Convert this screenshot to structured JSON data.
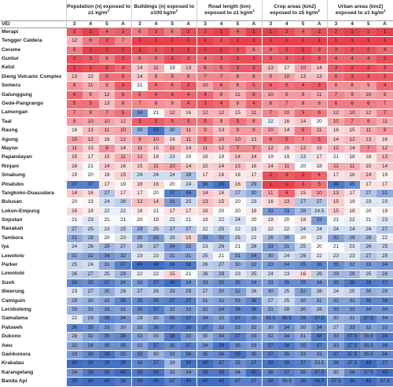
{
  "table": {
    "first_header": "VEI",
    "groups": [
      {
        "label": "Population (n) exposed to ≥1 kg/m",
        "sup": "2"
      },
      {
        "label": "Buildings (n) exposed to ≥100 kg/m",
        "sup": "2"
      },
      {
        "label": "Road length (km) exposed to ≥1 kg/m",
        "sup": "2"
      },
      {
        "label": "Crop areas (km2) exposed to ≥5 kg/m",
        "sup": "2"
      },
      {
        "label": "Urban areas (km2) exposed to ≥1 kg/m",
        "sup": "2"
      }
    ],
    "subheaders": [
      "3",
      "4",
      "5",
      "A"
    ],
    "color_scale": {
      "low": "#e8404c",
      "mid": "#ffffff",
      "high": "#3f6dc2",
      "min": 1,
      "max": 40
    },
    "rows": [
      {
        "name": "Merapi",
        "values": [
          "3",
          "1",
          "4",
          "3",
          "6",
          "3",
          "6",
          "2",
          "2",
          "1",
          "4",
          "1",
          "1",
          "2",
          "4",
          "2",
          "2",
          "1",
          "2",
          "1"
        ]
      },
      {
        "name": "Tengger Caldera",
        "values": [
          "12",
          "6",
          "3",
          "7",
          "1",
          "1",
          "1",
          "1",
          "1",
          "2",
          "1",
          "1",
          "1",
          "1",
          "1",
          "1",
          "1",
          "1",
          "1",
          "1"
        ]
      },
      {
        "name": "Cereme",
        "values": [
          "6",
          "1",
          "1",
          "1",
          "1",
          "2",
          "1",
          "1",
          "1",
          "1",
          "2",
          "6",
          "4",
          "2",
          "1",
          "3",
          "3",
          "2",
          "2",
          "4"
        ]
      },
      {
        "name": "Guntur",
        "values": [
          "2",
          "3",
          "6",
          "2",
          "6",
          "5",
          "2",
          "3",
          "4",
          "3",
          "2",
          "2",
          "3",
          "3",
          "2",
          "3",
          "4",
          "4",
          "4",
          "2"
        ]
      },
      {
        "name": "Kelut",
        "values": [
          "1",
          "2",
          "2",
          "4",
          "14",
          "11",
          "19",
          "13",
          "6",
          "5",
          "3",
          "3",
          "13",
          "17",
          "10",
          "14",
          "3",
          "2",
          "2",
          "3"
        ]
      },
      {
        "name": "Dieng Volcanic Complex",
        "values": [
          "13",
          "15",
          "5",
          "5",
          "14",
          "9",
          "8",
          "8",
          "7",
          "7",
          "8",
          "8",
          "9",
          "10",
          "13",
          "13",
          "5",
          "3",
          "3",
          "3"
        ]
      },
      {
        "name": "Semeru",
        "values": [
          "8",
          "11",
          "9",
          "3",
          "21",
          "5",
          "6",
          "3",
          "10",
          "6",
          "8",
          "5",
          "4",
          "5",
          "4",
          "3",
          "8",
          "8",
          "9",
          "4"
        ]
      },
      {
        "name": "Galunggung",
        "values": [
          "4",
          "9",
          "12",
          "6",
          "5",
          "4",
          "4",
          "4",
          "4",
          "8",
          "11",
          "6",
          "10",
          "9",
          "9",
          "11",
          "7",
          "9",
          "10",
          "9"
        ]
      },
      {
        "name": "Gede-Pangrango",
        "values": [
          "5",
          "5",
          "13",
          "8",
          "7",
          "8",
          "9",
          "4",
          "3",
          "4",
          "9",
          "4",
          "8",
          "7",
          "8",
          "8",
          "6",
          "6",
          "6",
          "7"
        ]
      },
      {
        "name": "Lamongan",
        "values": [
          "7",
          "8",
          "7",
          "5",
          "34",
          "21",
          "12",
          "16",
          "12",
          "12",
          "15",
          "11",
          "7",
          "10",
          "5",
          "6",
          "12",
          "10",
          "12",
          "7"
        ]
      },
      {
        "name": "Taal",
        "values": [
          "9",
          "10",
          "10",
          "12",
          "3",
          "3",
          "5",
          "5",
          "5",
          "9",
          "5",
          "8",
          "22",
          "16",
          "14",
          "20",
          "10",
          "7",
          "8",
          "11"
        ]
      },
      {
        "name": "Raung",
        "values": [
          "18",
          "13",
          "11",
          "10",
          "30",
          "39",
          "30",
          "11",
          "9",
          "13",
          "9",
          "9",
          "10",
          "14",
          "6",
          "11",
          "16",
          "15",
          "11",
          "9"
        ]
      },
      {
        "name": "Agung",
        "values": [
          "10",
          "12",
          "16",
          "12",
          "9",
          "10",
          "16",
          "11",
          "5",
          "10",
          "10",
          "13",
          "6",
          "5",
          "7",
          "5",
          "14",
          "12",
          "13",
          "16"
        ]
      },
      {
        "name": "Mayon",
        "values": [
          "11",
          "15",
          "8",
          "14",
          "11",
          "15",
          "11",
          "14",
          "11",
          "12",
          "7",
          "7",
          "12",
          "15",
          "12",
          "15",
          "12",
          "14",
          "7",
          "12"
        ]
      },
      {
        "name": "Papandayan",
        "values": [
          "15",
          "17",
          "15",
          "11",
          "12",
          "18",
          "23",
          "20",
          "18",
          "19",
          "14",
          "14",
          "19",
          "19",
          "23",
          "17",
          "21",
          "18",
          "18",
          "13"
        ]
      },
      {
        "name": "Rinjani",
        "values": [
          "16",
          "21",
          "14",
          "16",
          "15",
          "11",
          "10",
          "14",
          "15",
          "14",
          "13",
          "16",
          "14",
          "11",
          "20",
          "18",
          "11",
          "11",
          "15",
          "14"
        ]
      },
      {
        "name": "Sinabung",
        "values": [
          "19",
          "20",
          "18",
          "15",
          "24",
          "24",
          "24",
          "28",
          "17",
          "16",
          "18",
          "17",
          "2",
          "3",
          "2",
          "4",
          "17",
          "16",
          "14",
          "19"
        ]
      },
      {
        "name": "Pinatubo",
        "values": [
          "37",
          "37",
          "17",
          "19",
          "16",
          "16",
          "20",
          "24",
          "36",
          "39",
          "16",
          "29",
          "1",
          "1",
          "3",
          "5",
          "38",
          "35",
          "17",
          "17"
        ]
      },
      {
        "name": "Tangkoko-Duasudara",
        "values": [
          "14",
          "16",
          "27",
          "17",
          "17",
          "20",
          "37",
          "36",
          "14",
          "16",
          "27",
          "30",
          "11",
          "4",
          "15",
          "10",
          "13",
          "17",
          "27",
          "31"
        ]
      },
      {
        "name": "Bulusan",
        "values": [
          "20",
          "19",
          "24",
          "26",
          "13",
          "14",
          "33",
          "25",
          "13",
          "15",
          "20",
          "23",
          "16",
          "13",
          "27",
          "27",
          "15",
          "19",
          "23",
          "23"
        ]
      },
      {
        "name": "Lokon-Empung",
        "values": [
          "16",
          "18",
          "22",
          "22",
          "18",
          "21",
          "17",
          "17",
          "16",
          "20",
          "20",
          "18",
          "33",
          "33",
          "28",
          "24.5",
          "15",
          "18",
          "20",
          "19"
        ]
      },
      {
        "name": "Soputan",
        "values": [
          "21",
          "23",
          "21",
          "21",
          "20",
          "19",
          "22",
          "21",
          "19",
          "22",
          "24",
          "20",
          "18",
          "20",
          "18",
          "33",
          "21",
          "22",
          "21",
          "23"
        ]
      },
      {
        "name": "Ranakah",
        "values": [
          "27",
          "25",
          "23",
          "25",
          "29",
          "25",
          "27",
          "27",
          "22",
          "25",
          "22",
          "23",
          "22",
          "22",
          "24",
          "24",
          "24",
          "24",
          "24",
          "27"
        ]
      },
      {
        "name": "Tambora",
        "values": [
          "31",
          "28",
          "20",
          "23",
          "30",
          "33",
          "25",
          "15",
          "33",
          "32",
          "25",
          "22",
          "28",
          "30",
          "20",
          "23",
          "32",
          "29",
          "28",
          "22"
        ]
      },
      {
        "name": "Iya",
        "values": [
          "24",
          "26",
          "29",
          "27",
          "26",
          "27",
          "34",
          "32",
          "23",
          "26",
          "21",
          "26",
          "33",
          "31",
          "25",
          "20",
          "21",
          "23",
          "26",
          "25"
        ]
      },
      {
        "name": "Lewotolo",
        "values": [
          "31",
          "32",
          "34",
          "32",
          "23",
          "23",
          "31",
          "31",
          "25",
          "21",
          "31",
          "34",
          "30",
          "24",
          "26",
          "22",
          "23",
          "23",
          "27",
          "25"
        ]
      },
      {
        "name": "Parker",
        "values": [
          "25",
          "24",
          "31",
          "37",
          "40",
          "40",
          "38",
          "38",
          "26",
          "27",
          "30",
          "32",
          "33",
          "34",
          "35",
          "36",
          "35",
          "32",
          "33",
          "34"
        ]
      },
      {
        "name": "Lewotobi",
        "values": [
          "26",
          "27",
          "25",
          "29",
          "22",
          "22",
          "15",
          "21",
          "26",
          "28",
          "23",
          "25",
          "24",
          "23",
          "16",
          "26",
          "29",
          "29",
          "25",
          "28"
        ]
      },
      {
        "name": "Suoh",
        "values": [
          "36",
          "35",
          "37",
          "34",
          "33",
          "37",
          "40",
          "34",
          "33",
          "35",
          "35",
          "34",
          "33",
          "35",
          "35",
          "34",
          "35",
          "38",
          "38",
          "37"
        ]
      },
      {
        "name": "Iliwerung",
        "values": [
          "23",
          "27",
          "30",
          "26",
          "27",
          "26",
          "29",
          "29",
          "27",
          "30",
          "32",
          "26",
          "30",
          "25",
          "32",
          "26",
          "24",
          "25",
          "30",
          "29"
        ]
      },
      {
        "name": "Camiguin",
        "values": [
          "29",
          "30",
          "32",
          "36",
          "35",
          "36",
          "37",
          "37",
          "31",
          "32",
          "33",
          "36",
          "27",
          "25",
          "30",
          "31",
          "32",
          "32",
          "36",
          "36"
        ]
      },
      {
        "name": "Lerobolemg",
        "values": [
          "30",
          "31",
          "33",
          "32",
          "35",
          "37",
          "32",
          "33",
          "32",
          "34",
          "36",
          "36",
          "31",
          "28",
          "30",
          "28",
          "33",
          "33",
          "34",
          "34"
        ]
      },
      {
        "name": "Gamalama",
        "values": [
          "22",
          "29",
          "36",
          "34",
          "28",
          "30",
          "35",
          "37",
          "34",
          "32",
          "37",
          "35",
          "35.5",
          "36.5",
          "36",
          "37.5",
          "30",
          "31",
          "37.5",
          "34"
        ]
      },
      {
        "name": "Paluweh",
        "values": [
          "36",
          "35",
          "33",
          "30",
          "32",
          "36",
          "37",
          "38",
          "37",
          "33",
          "33",
          "32",
          "30",
          "34",
          "30",
          "34",
          "27",
          "33",
          "32",
          "33"
        ]
      },
      {
        "name": "Dukono",
        "values": [
          "28",
          "32",
          "35",
          "36",
          "32",
          "30",
          "38",
          "33",
          "30",
          "34",
          "37",
          "33",
          "32",
          "34",
          "31",
          "38",
          "33",
          "37.5",
          "35.5",
          "38"
        ]
      },
      {
        "name": "Awu",
        "values": [
          "32",
          "34",
          "35",
          "35",
          "32",
          "37",
          "35",
          "37",
          "34",
          "39",
          "35",
          "33",
          "37",
          "38",
          "35",
          "37",
          "33",
          "37.5",
          "35.5",
          "36"
        ]
      },
      {
        "name": "Gamkonora",
        "values": [
          "33",
          "36",
          "39",
          "35",
          "35",
          "30",
          "33",
          "36",
          "35",
          "36",
          "39",
          "35",
          "37",
          "35",
          "33",
          "33",
          "37",
          "37.5",
          "35.5",
          "36"
        ]
      },
      {
        "name": "Krakatau",
        "values": [
          "40",
          "39",
          "39",
          "39",
          "36",
          "37",
          "29",
          "39",
          "40",
          "37",
          "35",
          "37",
          "39",
          "38",
          "37",
          "33.5",
          "36",
          "37.5",
          "40",
          "37"
        ]
      },
      {
        "name": "Karangetang",
        "values": [
          "34",
          "38",
          "38",
          "40",
          "38",
          "39",
          "32",
          "34",
          "38",
          "38",
          "34",
          "40",
          "36",
          "37",
          "35",
          "37.5",
          "30",
          "36",
          "37.5",
          "40"
        ]
      },
      {
        "name": "Banda Api",
        "values": [
          "39",
          "40",
          "40",
          "38",
          "39",
          "40",
          "37",
          "40",
          "40",
          "40",
          "37",
          "37",
          "38",
          "35.5",
          "38",
          "39.5",
          "37.5",
          "39",
          "40",
          "37.5"
        ]
      }
    ]
  }
}
